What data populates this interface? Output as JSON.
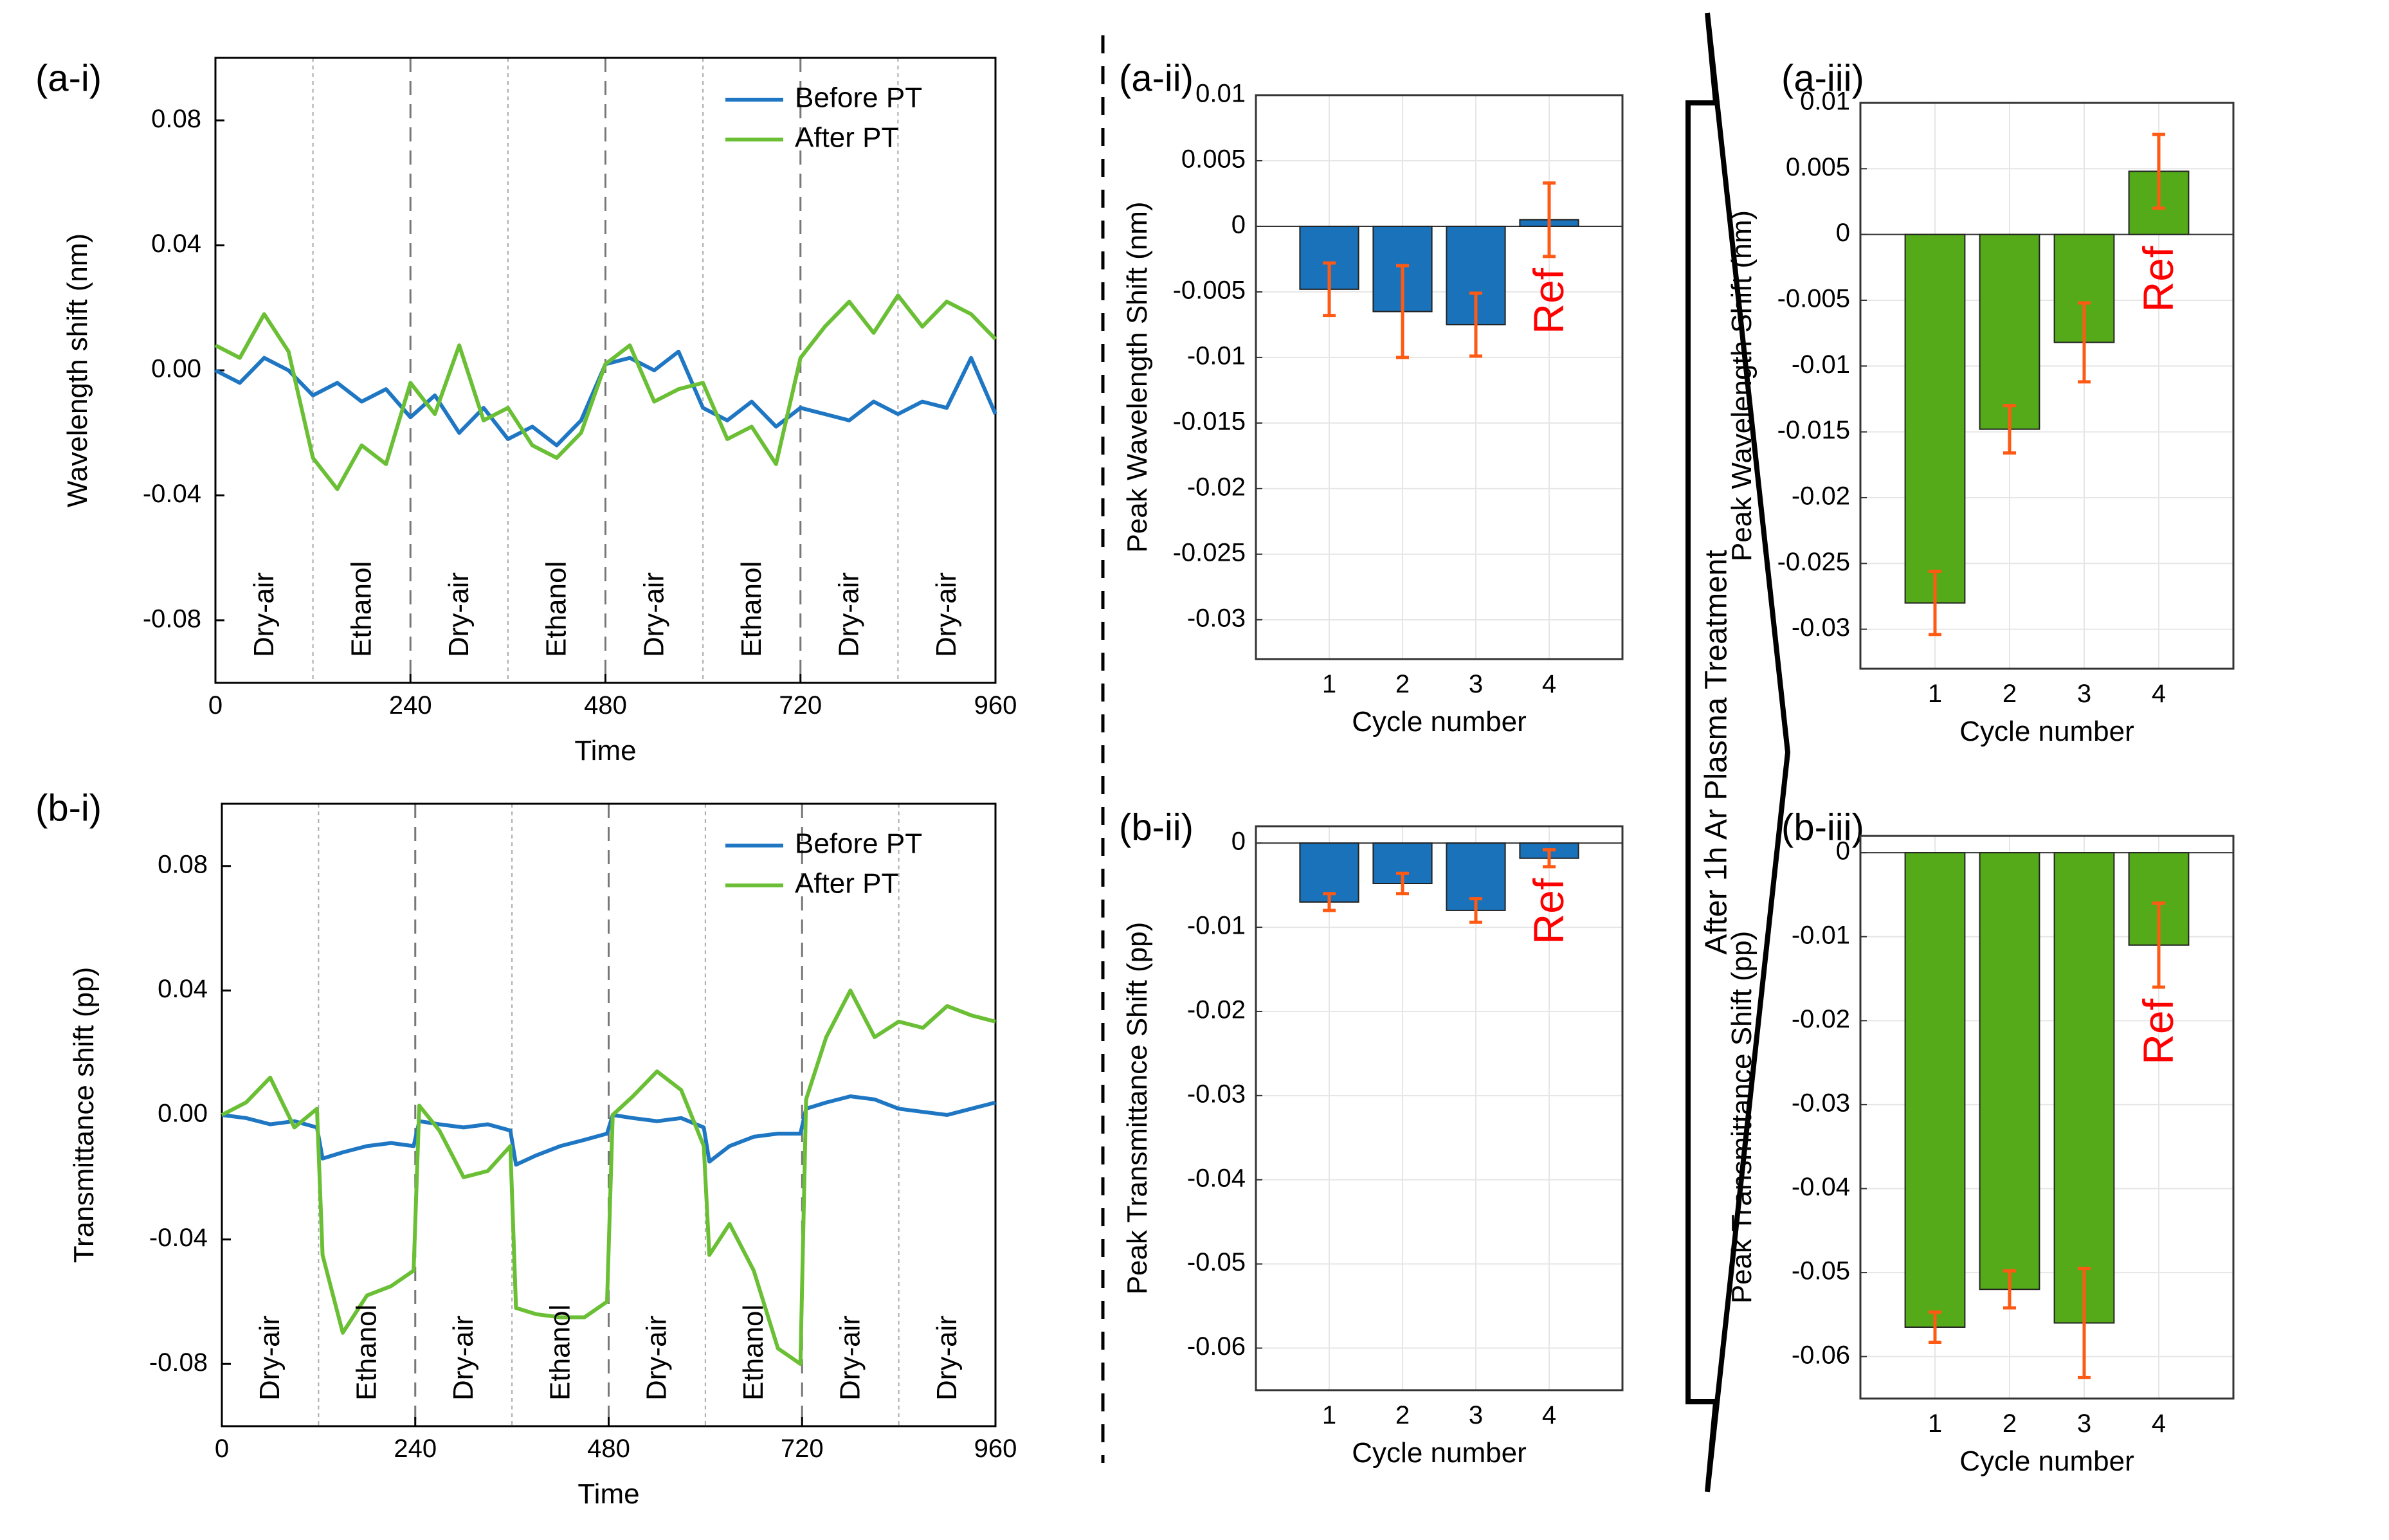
{
  "colors": {
    "before": "#1f77c4",
    "after": "#6abf35",
    "bar_before": "#1a72bb",
    "bar_after": "#55aa1a",
    "error": "#ff5a14",
    "ref": "#ff0000"
  },
  "arrow_label": "After 1h Ar Plasma Treatment",
  "chart_data": [
    {
      "id": "a-i",
      "panel_label": "(a-i)",
      "type": "line",
      "xlabel": "Time",
      "ylabel": "Wavelength shift (nm)",
      "xlim": [
        0,
        960
      ],
      "ylim": [
        -0.1,
        0.1
      ],
      "xticks": [
        0,
        240,
        480,
        720,
        960
      ],
      "xtick_labels": [
        "0",
        "240",
        "480",
        "720",
        "960"
      ],
      "yticks": [
        -0.08,
        -0.04,
        0.0,
        0.04,
        0.08
      ],
      "ytick_labels": [
        "-0.08",
        "-0.04",
        "0.00",
        "0.04",
        "0.08"
      ],
      "legend": [
        "Before PT",
        "After PT"
      ],
      "legend_position": "top-right",
      "regions": [
        "Dry-air",
        "Ethanol",
        "Dry-air",
        "Ethanol",
        "Dry-air",
        "Ethanol",
        "Dry-air",
        "Dry-air"
      ],
      "series": [
        {
          "name": "Before PT",
          "x": [
            0,
            30,
            60,
            90,
            120,
            150,
            180,
            210,
            240,
            270,
            300,
            330,
            360,
            390,
            420,
            450,
            480,
            510,
            540,
            570,
            600,
            630,
            660,
            690,
            720,
            750,
            780,
            810,
            840,
            870,
            900,
            930,
            960
          ],
          "y": [
            0.0,
            -0.004,
            0.004,
            0.0,
            -0.008,
            -0.004,
            -0.01,
            -0.006,
            -0.015,
            -0.008,
            -0.02,
            -0.012,
            -0.022,
            -0.018,
            -0.024,
            -0.016,
            0.002,
            0.004,
            0.0,
            0.006,
            -0.012,
            -0.016,
            -0.01,
            -0.018,
            -0.012,
            -0.014,
            -0.016,
            -0.01,
            -0.014,
            -0.01,
            -0.012,
            0.004,
            -0.014
          ]
        },
        {
          "name": "After PT",
          "x": [
            0,
            30,
            60,
            90,
            120,
            150,
            180,
            210,
            240,
            270,
            300,
            330,
            360,
            390,
            420,
            450,
            480,
            510,
            540,
            570,
            600,
            630,
            660,
            690,
            720,
            750,
            780,
            810,
            840,
            870,
            900,
            930,
            960
          ],
          "y": [
            0.008,
            0.004,
            0.018,
            0.006,
            -0.028,
            -0.038,
            -0.024,
            -0.03,
            -0.004,
            -0.014,
            0.008,
            -0.016,
            -0.012,
            -0.024,
            -0.028,
            -0.02,
            0.002,
            0.008,
            -0.01,
            -0.006,
            -0.004,
            -0.022,
            -0.018,
            -0.03,
            0.004,
            0.014,
            0.022,
            0.012,
            0.024,
            0.014,
            0.022,
            0.018,
            0.01
          ]
        }
      ]
    },
    {
      "id": "b-i",
      "panel_label": "(b-i)",
      "type": "line",
      "xlabel": "Time",
      "ylabel": "Transmittance shift (pp)",
      "xlim": [
        0,
        960
      ],
      "ylim": [
        -0.1,
        0.1
      ],
      "xticks": [
        0,
        240,
        480,
        720,
        960
      ],
      "xtick_labels": [
        "0",
        "240",
        "480",
        "720",
        "960"
      ],
      "yticks": [
        -0.08,
        -0.04,
        0.0,
        0.04,
        0.08
      ],
      "ytick_labels": [
        "-0.08",
        "-0.04",
        "0.00",
        "0.04",
        "0.08"
      ],
      "legend": [
        "Before PT",
        "After PT"
      ],
      "legend_position": "top-right",
      "regions": [
        "Dry-air",
        "Ethanol",
        "Dry-air",
        "Ethanol",
        "Dry-air",
        "Ethanol",
        "Dry-air",
        "Dry-air"
      ],
      "series": [
        {
          "name": "Before PT",
          "x": [
            0,
            30,
            60,
            90,
            118,
            125,
            150,
            180,
            210,
            238,
            245,
            270,
            300,
            330,
            358,
            365,
            390,
            420,
            450,
            478,
            485,
            510,
            540,
            570,
            598,
            605,
            630,
            660,
            690,
            718,
            725,
            750,
            780,
            810,
            840,
            870,
            900,
            930,
            960
          ],
          "y": [
            0.0,
            -0.001,
            -0.003,
            -0.002,
            -0.004,
            -0.014,
            -0.012,
            -0.01,
            -0.009,
            -0.01,
            -0.002,
            -0.003,
            -0.004,
            -0.003,
            -0.005,
            -0.016,
            -0.013,
            -0.01,
            -0.008,
            -0.006,
            0.0,
            -0.001,
            -0.002,
            -0.001,
            -0.004,
            -0.015,
            -0.01,
            -0.007,
            -0.006,
            -0.006,
            0.002,
            0.004,
            0.006,
            0.005,
            0.002,
            0.001,
            0.0,
            0.002,
            0.004
          ]
        },
        {
          "name": "After PT",
          "x": [
            0,
            30,
            60,
            90,
            118,
            125,
            150,
            180,
            210,
            238,
            245,
            270,
            300,
            330,
            358,
            365,
            390,
            420,
            450,
            478,
            485,
            510,
            540,
            570,
            598,
            605,
            630,
            660,
            690,
            718,
            725,
            750,
            780,
            810,
            840,
            870,
            900,
            930,
            960
          ],
          "y": [
            0.0,
            0.004,
            0.012,
            -0.004,
            0.002,
            -0.045,
            -0.07,
            -0.058,
            -0.055,
            -0.05,
            0.003,
            -0.005,
            -0.02,
            -0.018,
            -0.01,
            -0.062,
            -0.064,
            -0.065,
            -0.065,
            -0.06,
            0.0,
            0.006,
            0.014,
            0.008,
            -0.01,
            -0.045,
            -0.035,
            -0.05,
            -0.075,
            -0.08,
            0.005,
            0.025,
            0.04,
            0.025,
            0.03,
            0.028,
            0.035,
            0.032,
            0.03
          ]
        }
      ]
    },
    {
      "id": "a-ii",
      "panel_label": "(a-ii)",
      "type": "bar",
      "xlabel": "Cycle number",
      "ylabel": "Peak Wavelength Shift (nm)",
      "categories": [
        "1",
        "2",
        "3",
        "4"
      ],
      "values": [
        -0.0048,
        -0.0065,
        -0.0075,
        0.0005
      ],
      "errors": [
        0.002,
        0.0035,
        0.0024,
        0.0028
      ],
      "ylim": [
        -0.033,
        0.01
      ],
      "yticks": [
        0.01,
        0.005,
        0,
        -0.005,
        -0.01,
        -0.015,
        -0.02,
        -0.025,
        -0.03
      ],
      "ytick_labels": [
        "0.01",
        "0.005",
        "0",
        "-0.005",
        "-0.01",
        "-0.015",
        "-0.02",
        "-0.025",
        "-0.03"
      ],
      "annotation": "Ref",
      "grid": true,
      "color_key": "bar_before"
    },
    {
      "id": "b-ii",
      "panel_label": "(b-ii)",
      "type": "bar",
      "xlabel": "Cycle number",
      "ylabel": "Peak Transmittance Shift (pp)",
      "categories": [
        "1",
        "2",
        "3",
        "4"
      ],
      "values": [
        -0.007,
        -0.0048,
        -0.008,
        -0.0018
      ],
      "errors": [
        0.001,
        0.0012,
        0.0014,
        0.001
      ],
      "ylim": [
        -0.065,
        0.002
      ],
      "yticks": [
        0,
        -0.01,
        -0.02,
        -0.03,
        -0.04,
        -0.05,
        -0.06
      ],
      "ytick_labels": [
        "0",
        "-0.01",
        "-0.02",
        "-0.03",
        "-0.04",
        "-0.05",
        "-0.06"
      ],
      "annotation": "Ref",
      "grid": true,
      "color_key": "bar_before"
    },
    {
      "id": "a-iii",
      "panel_label": "(a-iii)",
      "type": "bar",
      "xlabel": "Cycle number",
      "ylabel": "Peak Wavelength Shift (nm)",
      "categories": [
        "1",
        "2",
        "3",
        "4"
      ],
      "values": [
        -0.028,
        -0.0148,
        -0.0082,
        0.0048
      ],
      "errors": [
        0.0024,
        0.0018,
        0.003,
        0.0028
      ],
      "ylim": [
        -0.033,
        0.01
      ],
      "yticks": [
        0.01,
        0.005,
        0,
        -0.005,
        -0.01,
        -0.015,
        -0.02,
        -0.025,
        -0.03
      ],
      "ytick_labels": [
        "0.01",
        "0.005",
        "0",
        "-0.005",
        "-0.01",
        "-0.015",
        "-0.02",
        "-0.025",
        "-0.03"
      ],
      "annotation": "Ref",
      "grid": true,
      "color_key": "bar_after"
    },
    {
      "id": "b-iii",
      "panel_label": "(b-iii)",
      "type": "bar",
      "xlabel": "Cycle number",
      "ylabel": "Peak Transmittance Shift (pp)",
      "categories": [
        "1",
        "2",
        "3",
        "4"
      ],
      "values": [
        -0.0565,
        -0.052,
        -0.056,
        -0.011
      ],
      "errors": [
        0.0018,
        0.0022,
        0.0065,
        0.005
      ],
      "ylim": [
        -0.065,
        0.002
      ],
      "yticks": [
        0,
        -0.01,
        -0.02,
        -0.03,
        -0.04,
        -0.05,
        -0.06
      ],
      "ytick_labels": [
        "0",
        "-0.01",
        "-0.02",
        "-0.03",
        "-0.04",
        "-0.05",
        "-0.06"
      ],
      "annotation": "Ref",
      "grid": true,
      "color_key": "bar_after"
    }
  ]
}
